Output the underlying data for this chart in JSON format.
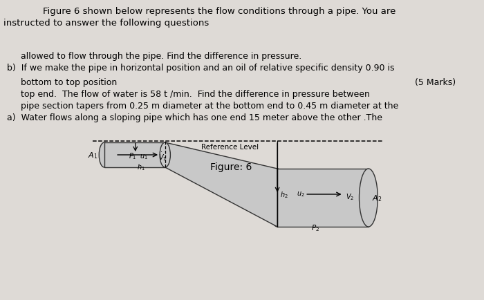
{
  "title_line1": "Figure 6 shown below represents the flow conditions through a pipe. You are",
  "title_line2": "instructed to answer the following questions",
  "figure_label": "Figure: 6",
  "marks_a": "(5 Marks)",
  "ref_level_text": "Reference Level",
  "bg_color": "#dedad6",
  "pipe_color": "#c8c8c8",
  "pipe_edge_color": "#333333",
  "text_color": "#000000",
  "font_size_body": 9.5,
  "font_size_small": 9.0,
  "q_a_lines": [
    "a)  Water flows along a sloping pipe which has one end 15 meter above the other .The",
    "     pipe section tapers from 0.25 m diameter at the bottom end to 0.45 m diameter at the",
    "     top end.  The flow of water is 58 t /min.  Find the difference in pressure between",
    "     bottom to top position"
  ],
  "q_b_lines": [
    "b)  If we make the pipe in horizontal position and an oil of relative specific density 0.90 is",
    "     allowed to flow through the pipe. Find the difference in pressure."
  ]
}
